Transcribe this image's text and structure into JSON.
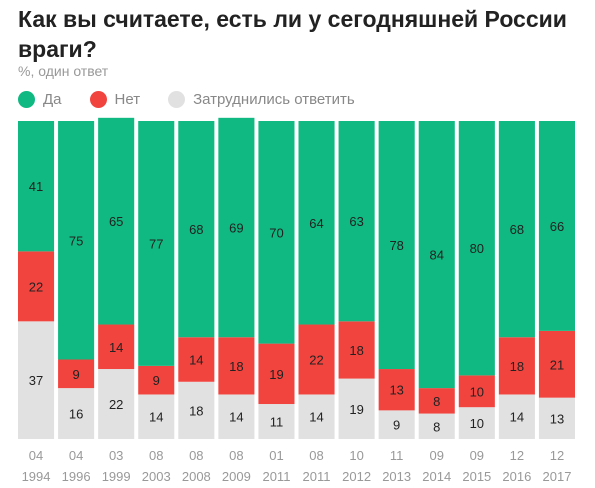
{
  "title": "Как вы считаете, есть ли у сегодняшней России враги?",
  "subtitle": "%, один ответ",
  "colors": {
    "yes": "#10b981",
    "no": "#f2443f",
    "unsure": "#e1e1e1",
    "axis_text": "#999999",
    "value_text": "#222222"
  },
  "legend": [
    {
      "key": "yes",
      "label": "Да"
    },
    {
      "key": "no",
      "label": "Нет"
    },
    {
      "key": "unsure",
      "label": "Затруднились ответить"
    }
  ],
  "chart_data": {
    "type": "bar",
    "stacked": true,
    "orientation": "vertical",
    "categories": [
      {
        "month": "04",
        "year": "1994"
      },
      {
        "month": "04",
        "year": "1996"
      },
      {
        "month": "03",
        "year": "1999"
      },
      {
        "month": "08",
        "year": "2003"
      },
      {
        "month": "08",
        "year": "2008"
      },
      {
        "month": "08",
        "year": "2009"
      },
      {
        "month": "01",
        "year": "2011"
      },
      {
        "month": "08",
        "year": "2011"
      },
      {
        "month": "10",
        "year": "2012"
      },
      {
        "month": "11",
        "year": "2013"
      },
      {
        "month": "09",
        "year": "2014"
      },
      {
        "month": "09",
        "year": "2015"
      },
      {
        "month": "12",
        "year": "2016"
      },
      {
        "month": "12",
        "year": "2017"
      }
    ],
    "series": [
      {
        "name": "Да",
        "key": "yes",
        "values": [
          41,
          75,
          65,
          77,
          68,
          69,
          70,
          64,
          63,
          78,
          84,
          80,
          68,
          66
        ]
      },
      {
        "name": "Нет",
        "key": "no",
        "values": [
          22,
          9,
          14,
          9,
          14,
          18,
          19,
          22,
          18,
          13,
          8,
          10,
          18,
          21
        ]
      },
      {
        "name": "Затруднились ответить",
        "key": "unsure",
        "values": [
          37,
          16,
          22,
          14,
          18,
          14,
          11,
          14,
          19,
          9,
          8,
          10,
          14,
          13
        ]
      }
    ],
    "stack_order_bottom_to_top": [
      "unsure",
      "no",
      "yes"
    ],
    "ylim": [
      0,
      100
    ],
    "grid": false,
    "legend_position": "top-left"
  }
}
